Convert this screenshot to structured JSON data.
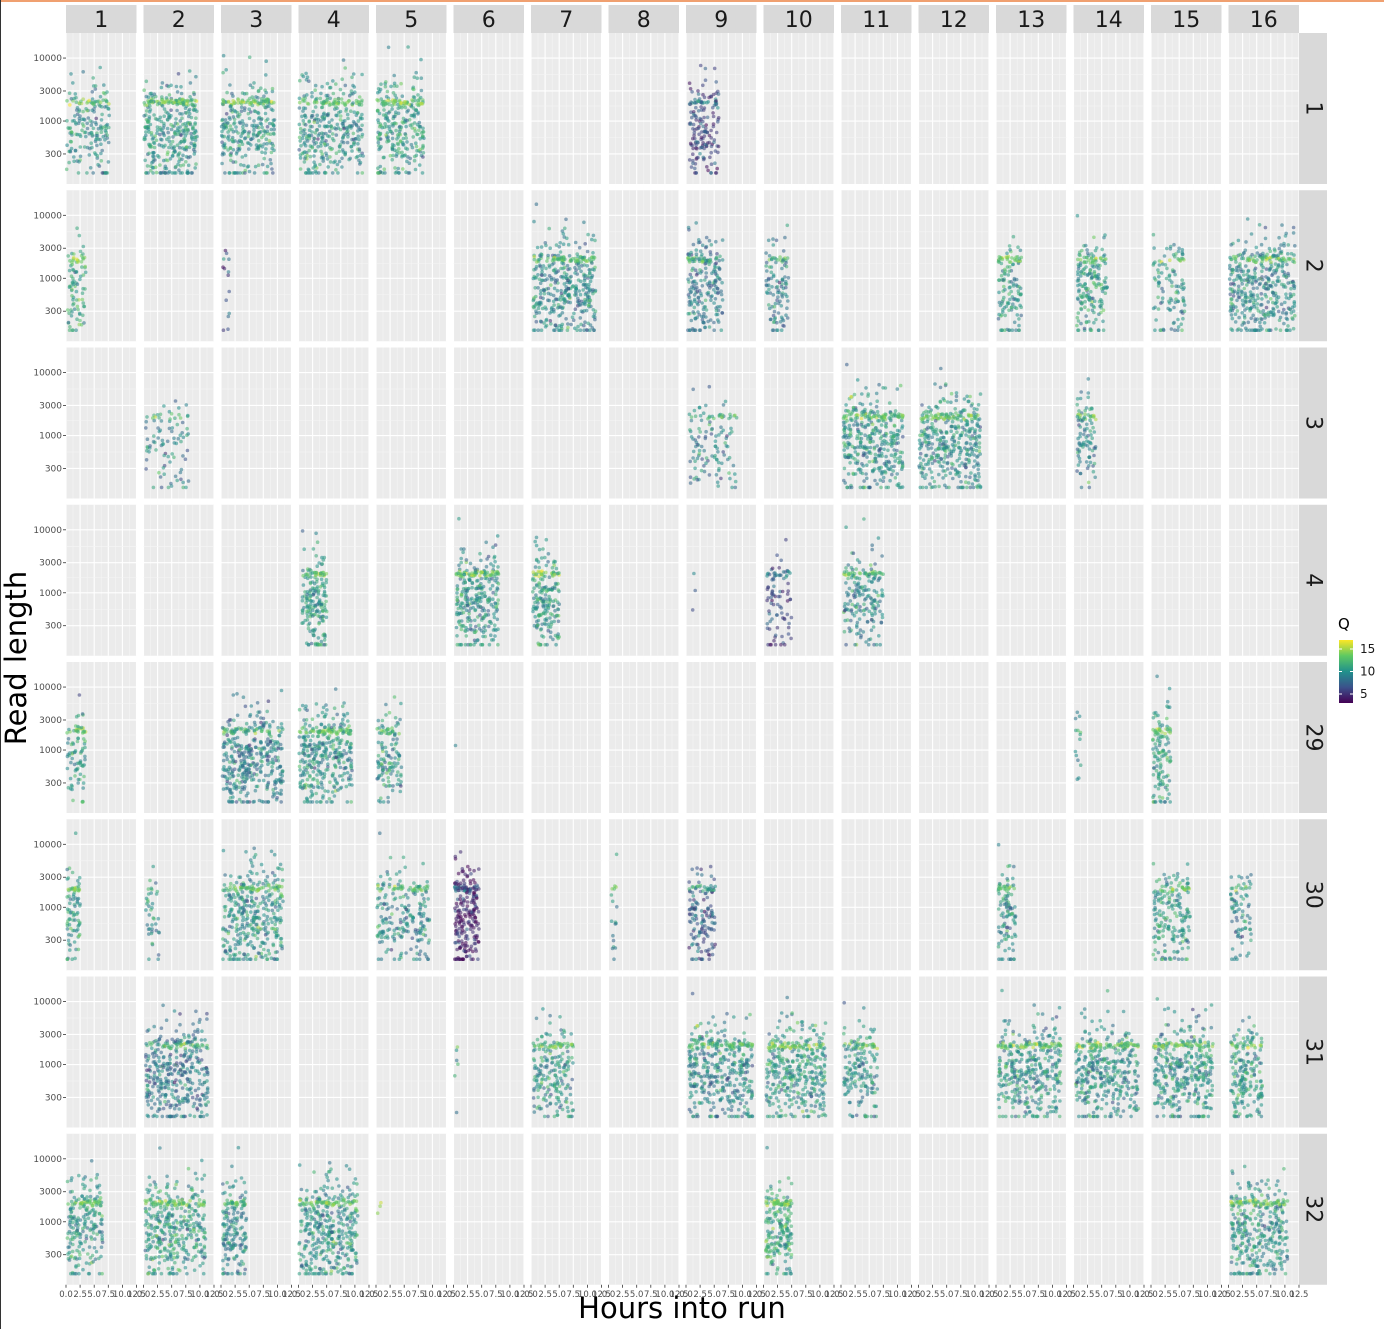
{
  "chart_data": {
    "type": "scatter",
    "facet_type": "grid",
    "xlabel": "Hours into run",
    "ylabel": "Read length",
    "y_scale": "log10",
    "y_ticks": [
      300,
      1000,
      3000,
      10000
    ],
    "ylim": [
      100,
      25000
    ],
    "x_ticks": [
      "0.0",
      "2.5",
      "5.0",
      "7.5",
      "10.0",
      "12.5"
    ],
    "xlim": [
      0,
      12.5
    ],
    "column_strips": [
      "1",
      "2",
      "3",
      "4",
      "5",
      "6",
      "7",
      "8",
      "9",
      "10",
      "11",
      "12",
      "13",
      "14",
      "15",
      "16"
    ],
    "row_strips": [
      "1",
      "2",
      "3",
      "4",
      "29",
      "30",
      "31",
      "32"
    ],
    "legend": {
      "title": "Q",
      "position": "right",
      "ticks": [
        15,
        10,
        5
      ],
      "range": [
        3,
        17
      ]
    },
    "colormap": "viridis",
    "panels": [
      {
        "row": "1",
        "col": "1",
        "hours": [
          0.1,
          7.8
        ],
        "density": 1.0,
        "q": 10,
        "n": 190
      },
      {
        "row": "1",
        "col": "2",
        "hours": [
          0.1,
          9.5
        ],
        "density": 1.0,
        "q": 10,
        "n": 380
      },
      {
        "row": "1",
        "col": "3",
        "hours": [
          0.1,
          9.5
        ],
        "density": 1.0,
        "q": 10,
        "n": 320
      },
      {
        "row": "1",
        "col": "4",
        "hours": [
          0.1,
          11.5
        ],
        "density": 1.0,
        "q": 10,
        "n": 380
      },
      {
        "row": "1",
        "col": "5",
        "hours": [
          0.2,
          8.5
        ],
        "density": 1.0,
        "q": 10.5,
        "n": 300
      },
      {
        "row": "1",
        "col": "9",
        "hours": [
          0.6,
          5.8
        ],
        "density": 1.0,
        "q": 6,
        "n": 170
      },
      {
        "row": "2",
        "col": "1",
        "hours": [
          0.3,
          3.5
        ],
        "density": 1.0,
        "q": 11,
        "n": 90
      },
      {
        "row": "2",
        "col": "3",
        "hours": [
          0.2,
          1.5
        ],
        "density": 1.0,
        "q": 6,
        "n": 14
      },
      {
        "row": "2",
        "col": "7",
        "hours": [
          0.4,
          11.5
        ],
        "density": 1.0,
        "q": 9.5,
        "n": 420
      },
      {
        "row": "2",
        "col": "9",
        "hours": [
          0.3,
          6.5
        ],
        "density": 1.0,
        "q": 8.5,
        "n": 220
      },
      {
        "row": "2",
        "col": "10",
        "hours": [
          0.4,
          4.5
        ],
        "density": 1.0,
        "q": 9,
        "n": 110
      },
      {
        "row": "2",
        "col": "13",
        "hours": [
          0.4,
          4.5
        ],
        "density": 1.0,
        "q": 10,
        "n": 130
      },
      {
        "row": "2",
        "col": "14",
        "hours": [
          0.6,
          6.0
        ],
        "density": 1.0,
        "q": 10.5,
        "n": 190
      },
      {
        "row": "2",
        "col": "15",
        "hours": [
          0.4,
          6.0
        ],
        "density": 1.0,
        "q": 10,
        "n": 110
      },
      {
        "row": "2",
        "col": "16",
        "hours": [
          0.2,
          11.8
        ],
        "density": 1.0,
        "q": 9.5,
        "n": 430
      },
      {
        "row": "3",
        "col": "2",
        "hours": [
          0.4,
          8.0
        ],
        "density": 1.0,
        "q": 9.5,
        "n": 90
      },
      {
        "row": "3",
        "col": "9",
        "hours": [
          0.6,
          9.0
        ],
        "density": 1.0,
        "q": 9,
        "n": 120
      },
      {
        "row": "3",
        "col": "11",
        "hours": [
          0.4,
          11.0
        ],
        "density": 1.0,
        "q": 10,
        "n": 400
      },
      {
        "row": "3",
        "col": "12",
        "hours": [
          0.1,
          11.0
        ],
        "density": 1.0,
        "q": 10,
        "n": 420
      },
      {
        "row": "3",
        "col": "14",
        "hours": [
          0.6,
          4.0
        ],
        "density": 1.0,
        "q": 9.5,
        "n": 100
      },
      {
        "row": "4",
        "col": "4",
        "hours": [
          0.6,
          5.0
        ],
        "density": 1.0,
        "q": 10.5,
        "n": 200
      },
      {
        "row": "4",
        "col": "6",
        "hours": [
          0.5,
          8.0
        ],
        "density": 1.0,
        "q": 10,
        "n": 320
      },
      {
        "row": "4",
        "col": "7",
        "hours": [
          0.3,
          5.0
        ],
        "density": 1.0,
        "q": 10.5,
        "n": 200
      },
      {
        "row": "4",
        "col": "9",
        "hours": [
          0.5,
          1.8
        ],
        "density": 1.0,
        "q": 8,
        "n": 3
      },
      {
        "row": "4",
        "col": "10",
        "hours": [
          0.6,
          5.0
        ],
        "density": 1.0,
        "q": 6,
        "n": 90
      },
      {
        "row": "4",
        "col": "11",
        "hours": [
          0.5,
          7.5
        ],
        "density": 1.0,
        "q": 9.5,
        "n": 200
      },
      {
        "row": "29",
        "col": "1",
        "hours": [
          0.2,
          3.5
        ],
        "density": 1.0,
        "q": 10.5,
        "n": 90
      },
      {
        "row": "29",
        "col": "3",
        "hours": [
          0.2,
          11.0
        ],
        "density": 1.0,
        "q": 9,
        "n": 400
      },
      {
        "row": "29",
        "col": "4",
        "hours": [
          0.1,
          9.5
        ],
        "density": 1.0,
        "q": 10,
        "n": 380
      },
      {
        "row": "29",
        "col": "5",
        "hours": [
          0.2,
          4.5
        ],
        "density": 1.0,
        "q": 10,
        "n": 130
      },
      {
        "row": "29",
        "col": "6",
        "hours": [
          0.1,
          0.8
        ],
        "density": 1.0,
        "q": 10,
        "n": 1
      },
      {
        "row": "29",
        "col": "14",
        "hours": [
          0.3,
          1.3
        ],
        "density": 1.0,
        "q": 9.5,
        "n": 14
      },
      {
        "row": "29",
        "col": "15",
        "hours": [
          0.3,
          3.5
        ],
        "density": 1.0,
        "q": 10.5,
        "n": 130
      },
      {
        "row": "30",
        "col": "1",
        "hours": [
          0.2,
          2.5
        ],
        "density": 1.0,
        "q": 10.5,
        "n": 90
      },
      {
        "row": "30",
        "col": "2",
        "hours": [
          0.4,
          2.8
        ],
        "density": 1.0,
        "q": 10,
        "n": 40
      },
      {
        "row": "30",
        "col": "3",
        "hours": [
          0.3,
          11.0
        ],
        "density": 1.0,
        "q": 10,
        "n": 400
      },
      {
        "row": "30",
        "col": "5",
        "hours": [
          0.2,
          9.5
        ],
        "density": 1.0,
        "q": 9.5,
        "n": 230
      },
      {
        "row": "30",
        "col": "6",
        "hours": [
          0.2,
          4.5
        ],
        "density": 1.0,
        "q": 4,
        "n": 240
      },
      {
        "row": "30",
        "col": "8",
        "hours": [
          0.5,
          1.5
        ],
        "density": 1.0,
        "q": 9,
        "n": 18
      },
      {
        "row": "30",
        "col": "9",
        "hours": [
          0.5,
          5.2
        ],
        "density": 1.0,
        "q": 7,
        "n": 150
      },
      {
        "row": "30",
        "col": "13",
        "hours": [
          0.4,
          3.5
        ],
        "density": 1.0,
        "q": 9.5,
        "n": 110
      },
      {
        "row": "30",
        "col": "15",
        "hours": [
          0.4,
          7.0
        ],
        "density": 1.0,
        "q": 10.5,
        "n": 200
      },
      {
        "row": "30",
        "col": "16",
        "hours": [
          0.4,
          4.0
        ],
        "density": 1.0,
        "q": 9.5,
        "n": 80
      },
      {
        "row": "31",
        "col": "2",
        "hours": [
          0.4,
          11.5
        ],
        "density": 1.0,
        "q": 8.5,
        "n": 400
      },
      {
        "row": "31",
        "col": "6",
        "hours": [
          0.2,
          0.8
        ],
        "density": 1.0,
        "q": 10,
        "n": 6
      },
      {
        "row": "31",
        "col": "7",
        "hours": [
          0.4,
          7.5
        ],
        "density": 1.0,
        "q": 10,
        "n": 220
      },
      {
        "row": "31",
        "col": "9",
        "hours": [
          0.5,
          11.8
        ],
        "density": 1.0,
        "q": 9.5,
        "n": 420
      },
      {
        "row": "31",
        "col": "10",
        "hours": [
          0.5,
          11.0
        ],
        "density": 1.0,
        "q": 10.5,
        "n": 400
      },
      {
        "row": "31",
        "col": "11",
        "hours": [
          0.4,
          6.5
        ],
        "density": 1.0,
        "q": 10,
        "n": 180
      },
      {
        "row": "31",
        "col": "13",
        "hours": [
          0.4,
          11.5
        ],
        "density": 1.0,
        "q": 10,
        "n": 400
      },
      {
        "row": "31",
        "col": "14",
        "hours": [
          0.4,
          11.5
        ],
        "density": 1.0,
        "q": 10,
        "n": 400
      },
      {
        "row": "31",
        "col": "15",
        "hours": [
          0.5,
          11.0
        ],
        "density": 1.0,
        "q": 10,
        "n": 400
      },
      {
        "row": "31",
        "col": "16",
        "hours": [
          0.4,
          6.0
        ],
        "density": 1.0,
        "q": 10.5,
        "n": 200
      },
      {
        "row": "32",
        "col": "1",
        "hours": [
          0.2,
          6.5
        ],
        "density": 1.0,
        "q": 10,
        "n": 230
      },
      {
        "row": "32",
        "col": "2",
        "hours": [
          0.3,
          11.0
        ],
        "density": 1.0,
        "q": 10.5,
        "n": 400
      },
      {
        "row": "32",
        "col": "3",
        "hours": [
          0.3,
          4.5
        ],
        "density": 1.0,
        "q": 9.5,
        "n": 180
      },
      {
        "row": "32",
        "col": "4",
        "hours": [
          0.1,
          10.5
        ],
        "density": 1.0,
        "q": 10,
        "n": 420
      },
      {
        "row": "32",
        "col": "5",
        "hours": [
          0.3,
          0.9
        ],
        "density": 1.0,
        "q": 13,
        "n": 3
      },
      {
        "row": "32",
        "col": "10",
        "hours": [
          0.4,
          5.0
        ],
        "density": 1.0,
        "q": 11,
        "n": 220
      },
      {
        "row": "32",
        "col": "16",
        "hours": [
          0.4,
          10.5
        ],
        "density": 1.0,
        "q": 10,
        "n": 380
      }
    ]
  }
}
